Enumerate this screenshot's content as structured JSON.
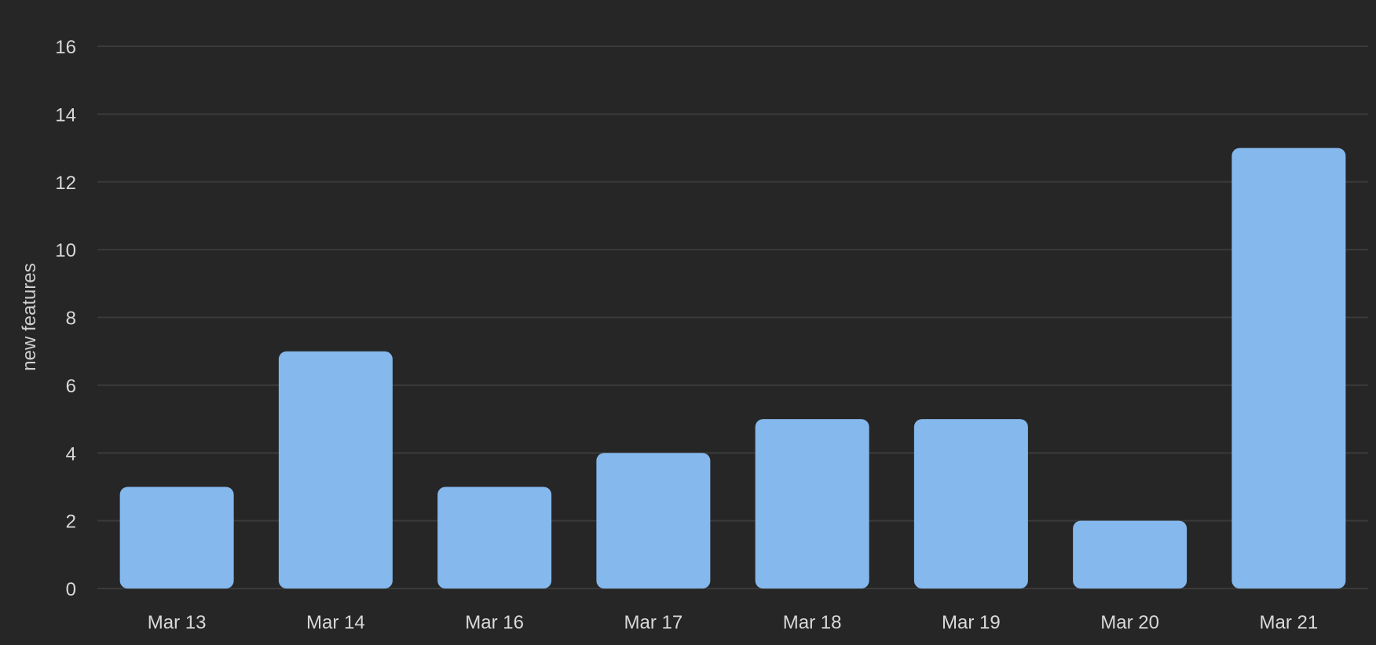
{
  "chart_data": {
    "type": "bar",
    "categories": [
      "Mar 13",
      "Mar 14",
      "Mar 16",
      "Mar 17",
      "Mar 18",
      "Mar 19",
      "Mar 20",
      "Mar 21"
    ],
    "values": [
      3,
      7,
      3,
      4,
      5,
      5,
      2,
      13
    ],
    "title": "",
    "xlabel": "",
    "ylabel": "new features",
    "ylim": [
      0,
      16
    ],
    "yticks": [
      0,
      2,
      4,
      6,
      8,
      10,
      12,
      14,
      16
    ],
    "grid": true,
    "legend": "none",
    "colors": {
      "background": "#262626",
      "bar": "#85b8ec",
      "grid": "#3a3a3a",
      "text": "#d9d9d9"
    }
  }
}
